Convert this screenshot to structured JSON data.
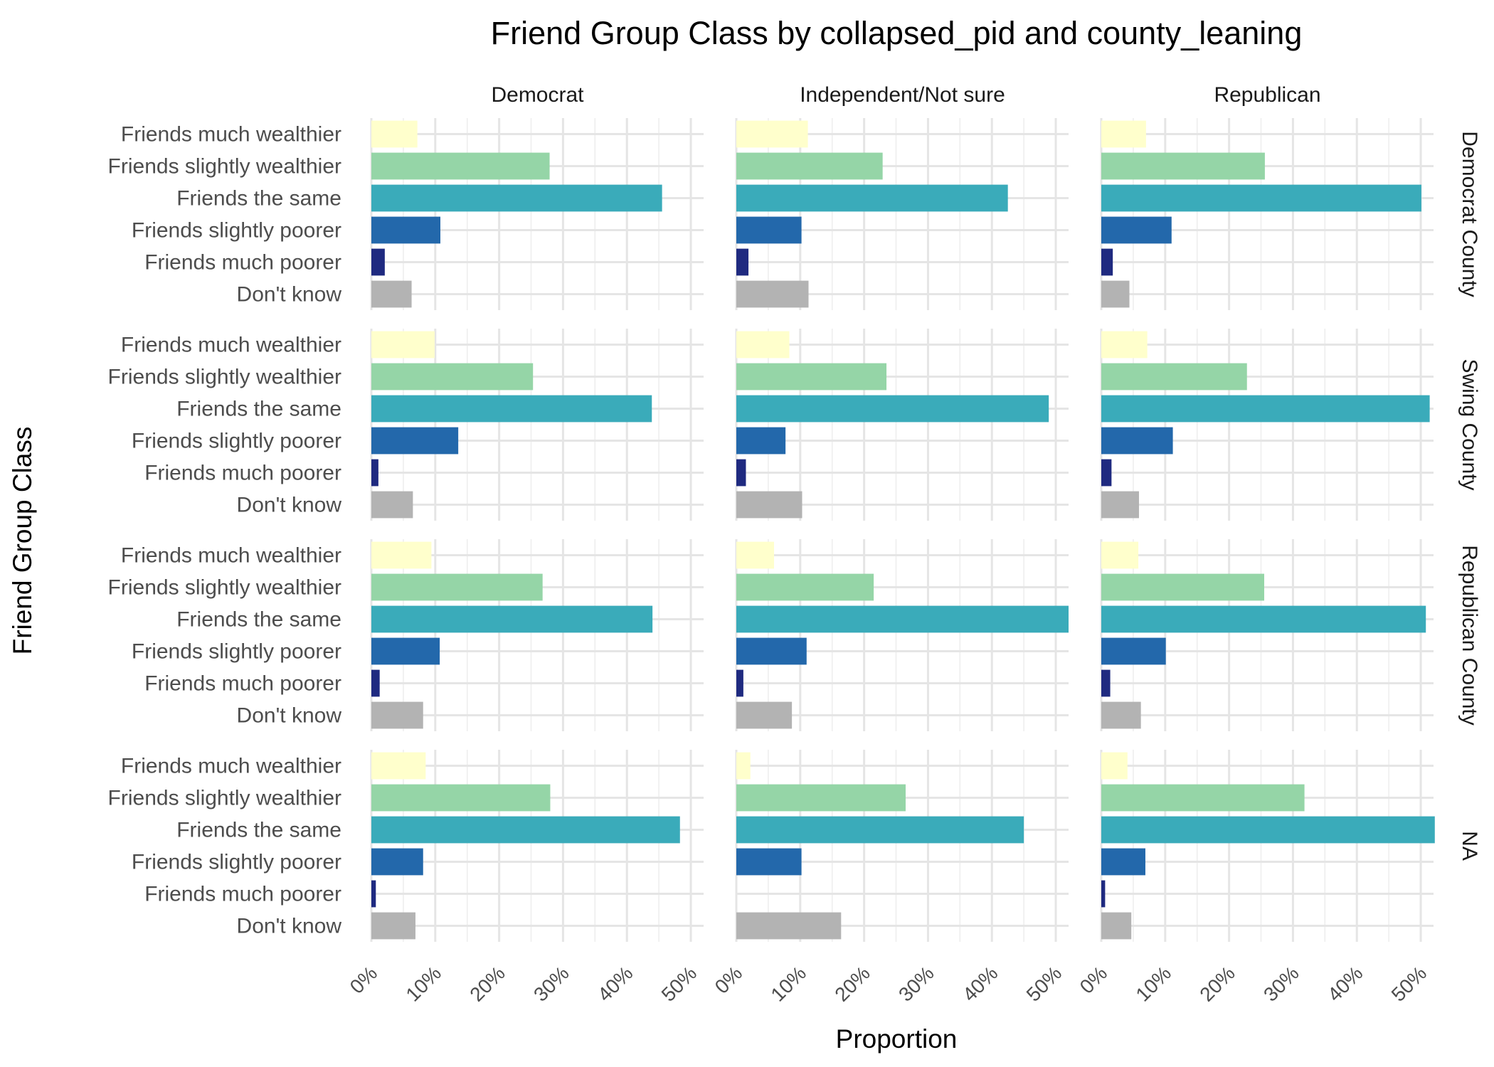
{
  "chart_data": {
    "type": "bar",
    "orientation": "horizontal",
    "title": "Friend Group Class by collapsed_pid and county_leaning",
    "xlabel": "Proportion",
    "ylabel": "Friend Group Class",
    "xlim": [
      0,
      0.52
    ],
    "xticks": [
      0,
      0.1,
      0.2,
      0.3,
      0.4,
      0.5
    ],
    "xtick_labels": [
      "0%",
      "10%",
      "20%",
      "30%",
      "40%",
      "50%"
    ],
    "grid": true,
    "categories": [
      "Friends much wealthier",
      "Friends slightly wealthier",
      "Friends the same",
      "Friends slightly poorer",
      "Friends much poorer",
      "Don't know"
    ],
    "category_colors": [
      "#FFFFCC",
      "#95D5A7",
      "#3AABBA",
      "#2368AB",
      "#1F2A80",
      "#B3B3B3"
    ],
    "column_facets": [
      "Democrat",
      "Independent/Not sure",
      "Republican"
    ],
    "row_facets": [
      "Democrat County",
      "Swing County",
      "Republican County",
      "NA"
    ],
    "row_facet_labels": [
      "Democrat County",
      "Swing County",
      "Republican County",
      "NA"
    ],
    "panels": [
      {
        "row": "Democrat County",
        "col": "Democrat",
        "values": [
          0.072,
          0.279,
          0.455,
          0.108,
          0.021,
          0.063
        ]
      },
      {
        "row": "Democrat County",
        "col": "Independent/Not sure",
        "values": [
          0.112,
          0.229,
          0.425,
          0.102,
          0.019,
          0.113
        ]
      },
      {
        "row": "Democrat County",
        "col": "Republican",
        "values": [
          0.07,
          0.256,
          0.501,
          0.11,
          0.018,
          0.044
        ]
      },
      {
        "row": "Swing County",
        "col": "Democrat",
        "values": [
          0.099,
          0.253,
          0.439,
          0.136,
          0.011,
          0.065
        ]
      },
      {
        "row": "Swing County",
        "col": "Independent/Not sure",
        "values": [
          0.083,
          0.235,
          0.489,
          0.077,
          0.015,
          0.103
        ]
      },
      {
        "row": "Swing County",
        "col": "Republican",
        "values": [
          0.072,
          0.228,
          0.514,
          0.112,
          0.016,
          0.059
        ]
      },
      {
        "row": "Republican County",
        "col": "Democrat",
        "values": [
          0.094,
          0.268,
          0.44,
          0.107,
          0.013,
          0.081
        ]
      },
      {
        "row": "Republican County",
        "col": "Independent/Not sure",
        "values": [
          0.059,
          0.215,
          0.52,
          0.11,
          0.011,
          0.087
        ]
      },
      {
        "row": "Republican County",
        "col": "Republican",
        "values": [
          0.058,
          0.255,
          0.508,
          0.101,
          0.014,
          0.062
        ]
      },
      {
        "row": "NA",
        "col": "Democrat",
        "values": [
          0.085,
          0.28,
          0.483,
          0.081,
          0.007,
          0.069
        ]
      },
      {
        "row": "NA",
        "col": "Independent/Not sure",
        "values": [
          0.022,
          0.265,
          0.45,
          0.102,
          0.0,
          0.164
        ]
      },
      {
        "row": "NA",
        "col": "Republican",
        "values": [
          0.041,
          0.318,
          0.522,
          0.069,
          0.006,
          0.047
        ]
      }
    ]
  }
}
